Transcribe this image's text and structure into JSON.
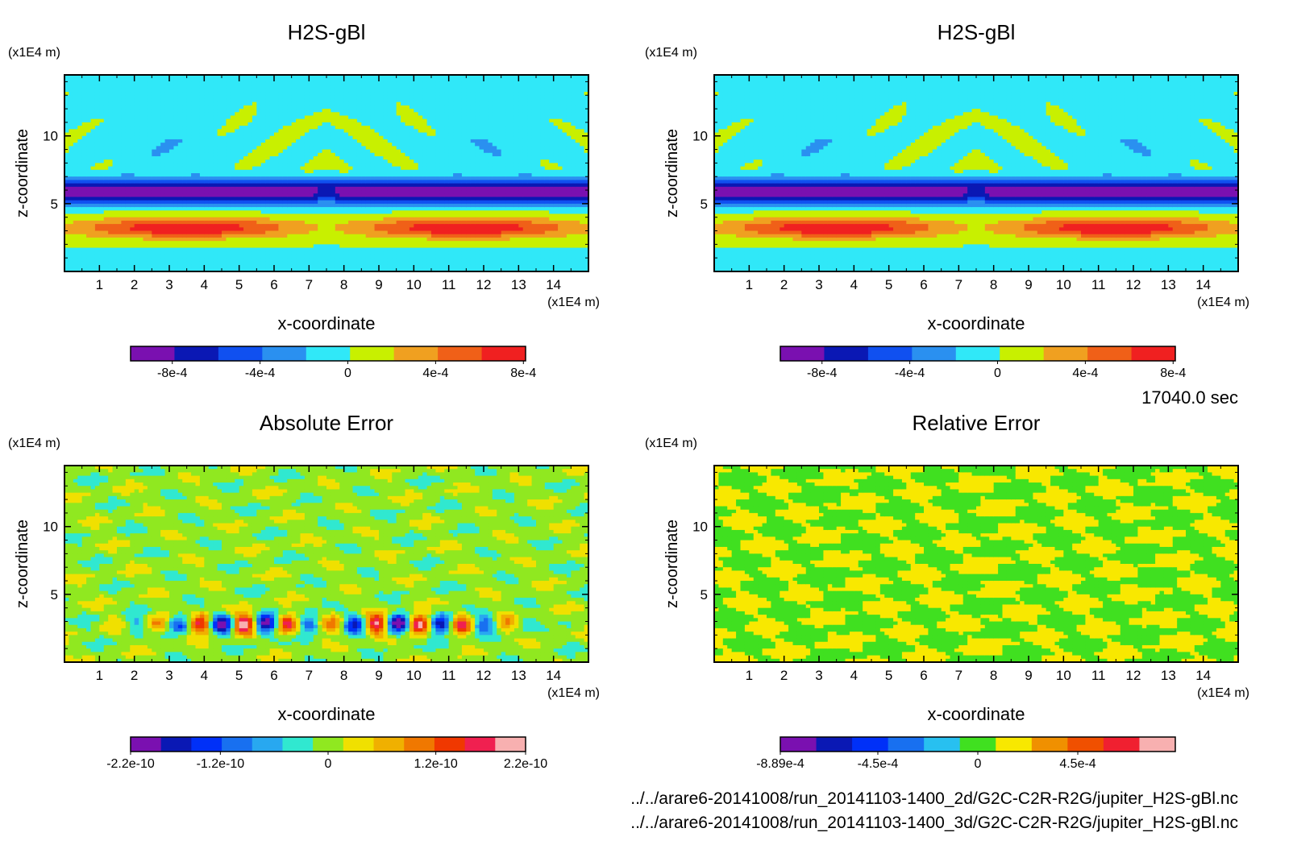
{
  "time_label": "17040.0 sec",
  "files": [
    "../../arare6-20141008/run_20141103-1400_2d/G2C-C2R-R2G/jupiter_H2S-gBl.nc",
    "../../arare6-20141008/run_20141103-1400_3d/G2C-C2R-R2G/jupiter_H2S-gBl.nc"
  ],
  "chart_data": [
    {
      "type": "heatmap",
      "title": "H2S-gBl",
      "xlabel": "x-coordinate",
      "ylabel": "z-coordinate",
      "x_unit": "(x1E4 m)",
      "y_unit": "(x1E4 m)",
      "xlim": [
        0,
        15
      ],
      "ylim": [
        0,
        14.5
      ],
      "x_ticks": [
        1,
        2,
        3,
        4,
        5,
        6,
        7,
        8,
        9,
        10,
        11,
        12,
        13,
        14
      ],
      "y_ticks": [
        5,
        10
      ],
      "pattern": "field",
      "colorbar": {
        "colors": [
          "#7a10b0",
          "#0a18b4",
          "#1050f0",
          "#2a90f0",
          "#30e8f8",
          "#c8f000",
          "#f0a020",
          "#f06018",
          "#f02020"
        ],
        "tick_labels": [
          "-8e-4",
          "-4e-4",
          "0",
          "4e-4",
          "8e-4"
        ],
        "tick_values": [
          -0.0008,
          -0.0004,
          0,
          0.0004,
          0.0008
        ],
        "range": [
          -0.00099,
          0.00081
        ]
      }
    },
    {
      "type": "heatmap",
      "title": "H2S-gBl",
      "xlabel": "x-coordinate",
      "ylabel": "z-coordinate",
      "x_unit": "(x1E4 m)",
      "y_unit": "(x1E4 m)",
      "xlim": [
        0,
        15
      ],
      "ylim": [
        0,
        14.5
      ],
      "x_ticks": [
        1,
        2,
        3,
        4,
        5,
        6,
        7,
        8,
        9,
        10,
        11,
        12,
        13,
        14
      ],
      "y_ticks": [
        5,
        10
      ],
      "pattern": "field",
      "colorbar": {
        "colors": [
          "#7a10b0",
          "#0a18b4",
          "#1050f0",
          "#2a90f0",
          "#30e8f8",
          "#c8f000",
          "#f0a020",
          "#f06018",
          "#f02020"
        ],
        "tick_labels": [
          "-8e-4",
          "-4e-4",
          "0",
          "4e-4",
          "8e-4"
        ],
        "tick_values": [
          -0.0008,
          -0.0004,
          0,
          0.0004,
          0.0008
        ],
        "range": [
          -0.00099,
          0.00081
        ]
      }
    },
    {
      "type": "heatmap",
      "title": "Absolute Error",
      "xlabel": "x-coordinate",
      "ylabel": "z-coordinate",
      "x_unit": "(x1E4 m)",
      "y_unit": "(x1E4 m)",
      "xlim": [
        0,
        15
      ],
      "ylim": [
        0,
        14.5
      ],
      "x_ticks": [
        1,
        2,
        3,
        4,
        5,
        6,
        7,
        8,
        9,
        10,
        11,
        12,
        13,
        14
      ],
      "y_ticks": [
        5,
        10
      ],
      "pattern": "abs",
      "colorbar": {
        "colors": [
          "#7a10b0",
          "#0a18b4",
          "#0030f8",
          "#1870f0",
          "#28a8f0",
          "#30e8d0",
          "#90e820",
          "#f0e000",
          "#f0b000",
          "#f07800",
          "#f03800",
          "#f02050",
          "#f8b0b0"
        ],
        "tick_labels": [
          "-2.2e-10",
          "-1.2e-10",
          "0",
          "1.2e-10",
          "2.2e-10"
        ],
        "tick_values": [
          -2.2e-10,
          -1.2e-10,
          0,
          1.2e-10,
          2.2e-10
        ],
        "range": [
          -2.2e-10,
          2.2e-10
        ]
      }
    },
    {
      "type": "heatmap",
      "title": "Relative Error",
      "xlabel": "x-coordinate",
      "ylabel": "z-coordinate",
      "x_unit": "(x1E4 m)",
      "y_unit": "(x1E4 m)",
      "xlim": [
        0,
        15
      ],
      "ylim": [
        0,
        14.5
      ],
      "x_ticks": [
        1,
        2,
        3,
        4,
        5,
        6,
        7,
        8,
        9,
        10,
        11,
        12,
        13,
        14
      ],
      "y_ticks": [
        5,
        10
      ],
      "pattern": "rel",
      "colorbar": {
        "colors": [
          "#7a10b0",
          "#0a18b4",
          "#0030f8",
          "#1870f0",
          "#28c0f0",
          "#40e020",
          "#f8e800",
          "#f09000",
          "#f05000",
          "#f02030",
          "#f8b0b0"
        ],
        "tick_labels": [
          "-8.89e-4",
          "-4.5e-4",
          "0",
          "4.5e-4"
        ],
        "tick_values": [
          -0.000889,
          -0.00045,
          0,
          0.00045
        ],
        "range": [
          -0.000889,
          0.000889
        ]
      }
    }
  ]
}
